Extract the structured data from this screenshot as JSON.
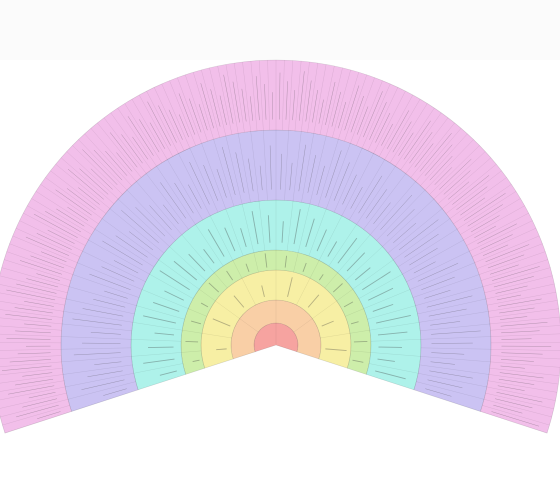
{
  "rings": [
    {
      "color": "#f6a3a0"
    },
    {
      "color": "#f9cfa6"
    },
    {
      "color": "#f7efa4"
    },
    {
      "color": "#cdeeaa"
    },
    {
      "color": "#aef2ea"
    },
    {
      "color": "#cbc3f3"
    },
    {
      "color": "#f2bfea"
    }
  ]
}
